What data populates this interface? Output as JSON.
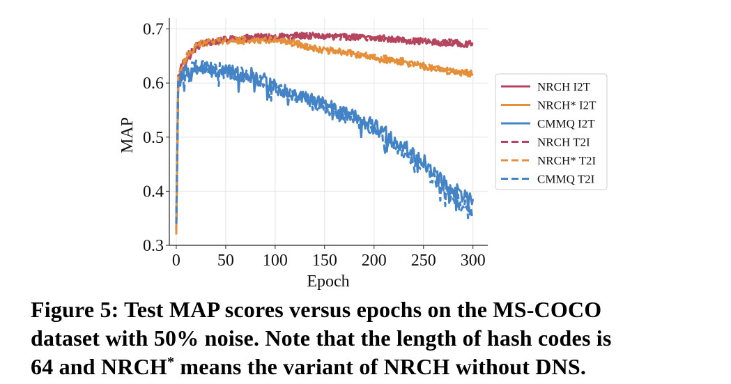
{
  "caption": {
    "line1": "Figure 5: Test MAP scores versus epochs on the MS-COCO",
    "line2": "dataset with 50% noise. Note that the length of hash codes is",
    "line3_pre": "64 and NRCH",
    "line3_sup": "*",
    "line3_post": " means the variant of NRCH without DNS."
  },
  "chart_data": {
    "type": "line",
    "xlabel": "Epoch",
    "ylabel": "MAP",
    "xlim": [
      -7,
      315
    ],
    "ylim": [
      0.3,
      0.72
    ],
    "xticks": [
      0,
      50,
      100,
      150,
      200,
      250,
      300
    ],
    "yticks": [
      0.3,
      0.4,
      0.5,
      0.6,
      0.7
    ],
    "xtick_labels": [
      "0",
      "50",
      "100",
      "150",
      "200",
      "250",
      "300"
    ],
    "ytick_labels": [
      "0.3",
      "0.4",
      "0.5",
      "0.6",
      "0.7"
    ],
    "grid": true,
    "legend_position": "right",
    "colors": {
      "nrch": "#b5445e",
      "nrch_star": "#e58f3b",
      "cmmq": "#4383c6"
    },
    "series": [
      {
        "name": "NRCH I2T",
        "style": "solid",
        "color": "#b5445e",
        "x": [
          0,
          2,
          5,
          10,
          20,
          30,
          50,
          75,
          100,
          125,
          150,
          175,
          200,
          225,
          250,
          275,
          300
        ],
        "y": [
          0.33,
          0.6,
          0.62,
          0.64,
          0.665,
          0.675,
          0.68,
          0.685,
          0.685,
          0.688,
          0.686,
          0.685,
          0.683,
          0.68,
          0.676,
          0.674,
          0.672
        ],
        "noise": 0.006
      },
      {
        "name": "NRCH* I2T",
        "style": "solid",
        "color": "#e58f3b",
        "x": [
          0,
          2,
          5,
          10,
          20,
          30,
          50,
          75,
          100,
          125,
          150,
          175,
          200,
          225,
          250,
          275,
          300
        ],
        "y": [
          0.32,
          0.6,
          0.625,
          0.645,
          0.668,
          0.675,
          0.677,
          0.678,
          0.68,
          0.67,
          0.66,
          0.655,
          0.645,
          0.64,
          0.63,
          0.622,
          0.615
        ],
        "noise": 0.006
      },
      {
        "name": "CMMQ I2T",
        "style": "solid",
        "color": "#4383c6",
        "x": [
          0,
          2,
          5,
          10,
          20,
          30,
          50,
          75,
          100,
          125,
          150,
          175,
          200,
          225,
          250,
          275,
          300
        ],
        "y": [
          0.33,
          0.6,
          0.61,
          0.62,
          0.625,
          0.625,
          0.62,
          0.615,
          0.595,
          0.575,
          0.56,
          0.54,
          0.52,
          0.49,
          0.455,
          0.41,
          0.38
        ],
        "noise": 0.014
      },
      {
        "name": "NRCH T2I",
        "style": "dashed",
        "color": "#b5445e",
        "x": [
          0,
          2,
          5,
          10,
          20,
          30,
          50,
          75,
          100,
          125,
          150,
          175,
          200,
          225,
          250,
          275,
          300
        ],
        "y": [
          0.34,
          0.61,
          0.63,
          0.65,
          0.668,
          0.675,
          0.68,
          0.684,
          0.686,
          0.687,
          0.686,
          0.685,
          0.684,
          0.68,
          0.677,
          0.675,
          0.673
        ],
        "noise": 0.006
      },
      {
        "name": "NRCH* T2I",
        "style": "dashed",
        "color": "#e58f3b",
        "x": [
          0,
          2,
          5,
          10,
          20,
          30,
          50,
          75,
          100,
          125,
          150,
          175,
          200,
          225,
          250,
          275,
          300
        ],
        "y": [
          0.33,
          0.61,
          0.63,
          0.648,
          0.67,
          0.676,
          0.678,
          0.68,
          0.681,
          0.672,
          0.662,
          0.656,
          0.648,
          0.642,
          0.632,
          0.625,
          0.618
        ],
        "noise": 0.006
      },
      {
        "name": "CMMQ T2I",
        "style": "dashed",
        "color": "#4383c6",
        "x": [
          0,
          2,
          5,
          10,
          20,
          30,
          50,
          75,
          100,
          125,
          150,
          175,
          200,
          225,
          250,
          275,
          300
        ],
        "y": [
          0.34,
          0.6,
          0.615,
          0.622,
          0.628,
          0.628,
          0.622,
          0.612,
          0.59,
          0.572,
          0.555,
          0.535,
          0.512,
          0.48,
          0.445,
          0.395,
          0.36
        ],
        "noise": 0.014
      }
    ]
  }
}
